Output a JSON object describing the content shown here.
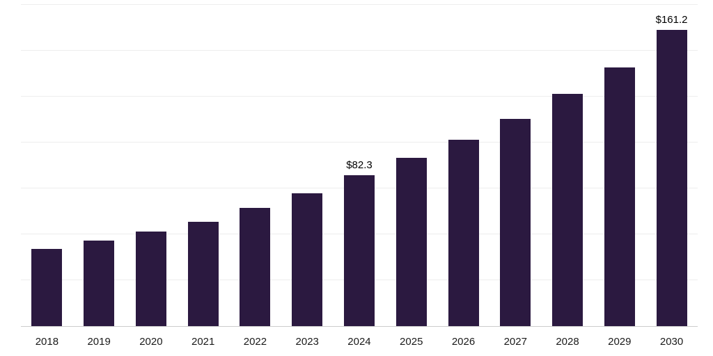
{
  "chart_data": {
    "type": "bar",
    "title": "",
    "xlabel": "",
    "ylabel": "",
    "categories": [
      "2018",
      "2019",
      "2020",
      "2021",
      "2022",
      "2023",
      "2024",
      "2025",
      "2026",
      "2027",
      "2028",
      "2029",
      "2030"
    ],
    "values": [
      42.0,
      46.5,
      51.5,
      57.0,
      64.5,
      72.5,
      82.3,
      91.5,
      101.5,
      113.0,
      126.5,
      141.0,
      161.2
    ],
    "annotations": [
      {
        "category": "2024",
        "text": "$82.3"
      },
      {
        "category": "2030",
        "text": "$161.2"
      }
    ],
    "ylim": [
      0,
      175
    ],
    "grid": {
      "horizontal": true,
      "step": 25,
      "vertical": false
    },
    "legend": "none",
    "bar_color": "#2b1940",
    "background": "#ffffff",
    "gridline_color": "#ededed",
    "axis_line_color": "#cccccc",
    "tick_label_color": "#1a1a1a",
    "annotation_color": "#000000"
  }
}
